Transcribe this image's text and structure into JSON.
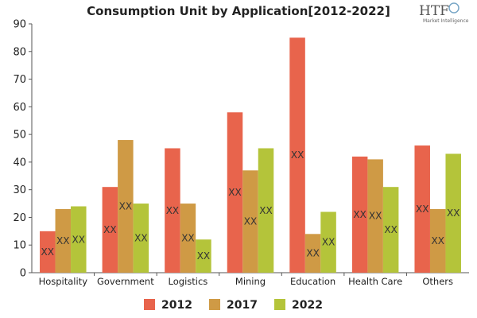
{
  "logo": {
    "main": "HTF",
    "sub": "Market Intelligence"
  },
  "chart_data": {
    "type": "bar",
    "title": "Consumption Unit by  Application[2012-2022]",
    "xlabel": "",
    "ylabel": "",
    "ylim": [
      0,
      90
    ],
    "yticks": [
      0,
      10,
      20,
      30,
      40,
      50,
      60,
      70,
      80,
      90
    ],
    "grid": false,
    "legend_position": "bottom",
    "categories": [
      "Hospitality",
      "Government",
      "Logistics",
      "Mining",
      "Education",
      "Health Care",
      "Others"
    ],
    "series": [
      {
        "name": "2012",
        "color": "#e8644c",
        "values": [
          15,
          31,
          45,
          58,
          85,
          42,
          46
        ]
      },
      {
        "name": "2017",
        "color": "#cf9a45",
        "values": [
          23,
          48,
          25,
          37,
          14,
          41,
          23
        ]
      },
      {
        "name": "2022",
        "color": "#b4c43a",
        "values": [
          24,
          25,
          12,
          45,
          22,
          31,
          43
        ]
      }
    ],
    "data_label": "XX"
  }
}
